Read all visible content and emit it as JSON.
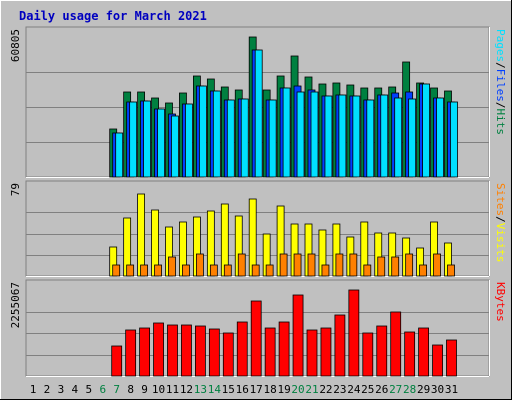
{
  "colors": {
    "background": "#C0C0C0",
    "plot_background": "#C0C0C0",
    "title": "#0000C0",
    "hits": "#008040",
    "files": "#0040FF",
    "pages": "#00E0FF",
    "visits": "#FFFF00",
    "sites": "#FF8000",
    "kbytes": "#FF0000",
    "weekend_label": "#008040",
    "weekday_label": "#000000"
  },
  "chart_data": {
    "type": "bar",
    "title": "Daily usage for March 2021",
    "days": [
      "1",
      "2",
      "3",
      "4",
      "5",
      "6",
      "7",
      "8",
      "9",
      "10",
      "11",
      "12",
      "13",
      "14",
      "15",
      "16",
      "17",
      "18",
      "19",
      "20",
      "21",
      "22",
      "23",
      "24",
      "25",
      "26",
      "27",
      "28",
      "29",
      "30",
      "31"
    ],
    "weekend_days": [
      "6",
      "7",
      "13",
      "14",
      "20",
      "21",
      "27",
      "28"
    ],
    "panels": [
      {
        "name": "top",
        "max_label": "60805",
        "ymax": 60805,
        "axis_labels": [
          "Pages",
          "/",
          "Files",
          "/",
          "Hits"
        ],
        "axis_label_colors": [
          "#00E0FF",
          "#000000",
          "#0040FF",
          "#000000",
          "#008040"
        ],
        "series": [
          {
            "name": "Hits",
            "color": "#008040",
            "values": [
              0,
              0,
              0,
              0,
              0,
              0,
              21000,
              37000,
              37000,
              34500,
              32000,
              36500,
              44000,
              42500,
              39000,
              38000,
              60805,
              38000,
              44000,
              52500,
              43500,
              40500,
              41000,
              40000,
              38500,
              38500,
              39000,
              50000,
              41000,
              38500,
              37500
            ]
          },
          {
            "name": "Files",
            "color": "#0040FF",
            "values": [
              0,
              0,
              0,
              0,
              0,
              0,
              19000,
              32500,
              33000,
              29500,
              27500,
              31500,
              39500,
              37500,
              33500,
              34000,
              55000,
              33500,
              38500,
              39500,
              38000,
              35000,
              35500,
              35000,
              33500,
              35500,
              36500,
              37000,
              40500,
              34500,
              32500
            ]
          },
          {
            "name": "Pages",
            "color": "#00E0FF",
            "values": [
              0,
              0,
              0,
              0,
              0,
              0,
              19000,
              32500,
              33000,
              29500,
              26500,
              31500,
              39500,
              37500,
              33500,
              34000,
              55000,
              33500,
              38500,
              37000,
              37000,
              35000,
              35500,
              35000,
              33500,
              35500,
              34500,
              34000,
              40500,
              34500,
              32500
            ]
          }
        ]
      },
      {
        "name": "middle",
        "max_label": "79",
        "ymax": 79,
        "axis_labels": [
          "Sites",
          "/",
          "Visits"
        ],
        "axis_label_colors": [
          "#FF8000",
          "#000000",
          "#FFFF00"
        ],
        "series": [
          {
            "name": "Visits",
            "color": "#FFFF00",
            "values": [
              0,
              0,
              0,
              0,
              0,
              0,
              27,
              54,
              76,
              61,
              46,
              50,
              55,
              60,
              67,
              56,
              72,
              39,
              65,
              48,
              48,
              43,
              48,
              36,
              50,
              40,
              40,
              35,
              26,
              50,
              31
            ]
          },
          {
            "name": "Sites",
            "color": "#FF8000",
            "values": [
              0,
              0,
              0,
              0,
              0,
              0,
              10,
              10,
              10,
              10,
              18,
              10,
              20,
              10,
              10,
              20,
              10,
              10,
              20,
              20,
              20,
              10,
              20,
              20,
              10,
              18,
              18,
              20,
              10,
              20,
              10
            ]
          }
        ]
      },
      {
        "name": "bottom",
        "max_label": "2255067",
        "ymax": 2255067,
        "axis_labels": [
          "KBytes"
        ],
        "axis_label_colors": [
          "#FF0000"
        ],
        "series": [
          {
            "name": "KBytes",
            "color": "#FF0000",
            "values": [
              0,
              0,
              0,
              0,
              0,
              0,
              790000,
              1210000,
              1250000,
              1400000,
              1330000,
              1350000,
              1320000,
              1230000,
              1120000,
              1420000,
              1960000,
              1260000,
              1420000,
              2130000,
              1210000,
              1250000,
              1590000,
              2255067,
              1130000,
              1320000,
              1690000,
              1160000,
              1250000,
              800000,
              950000
            ]
          }
        ]
      }
    ]
  }
}
